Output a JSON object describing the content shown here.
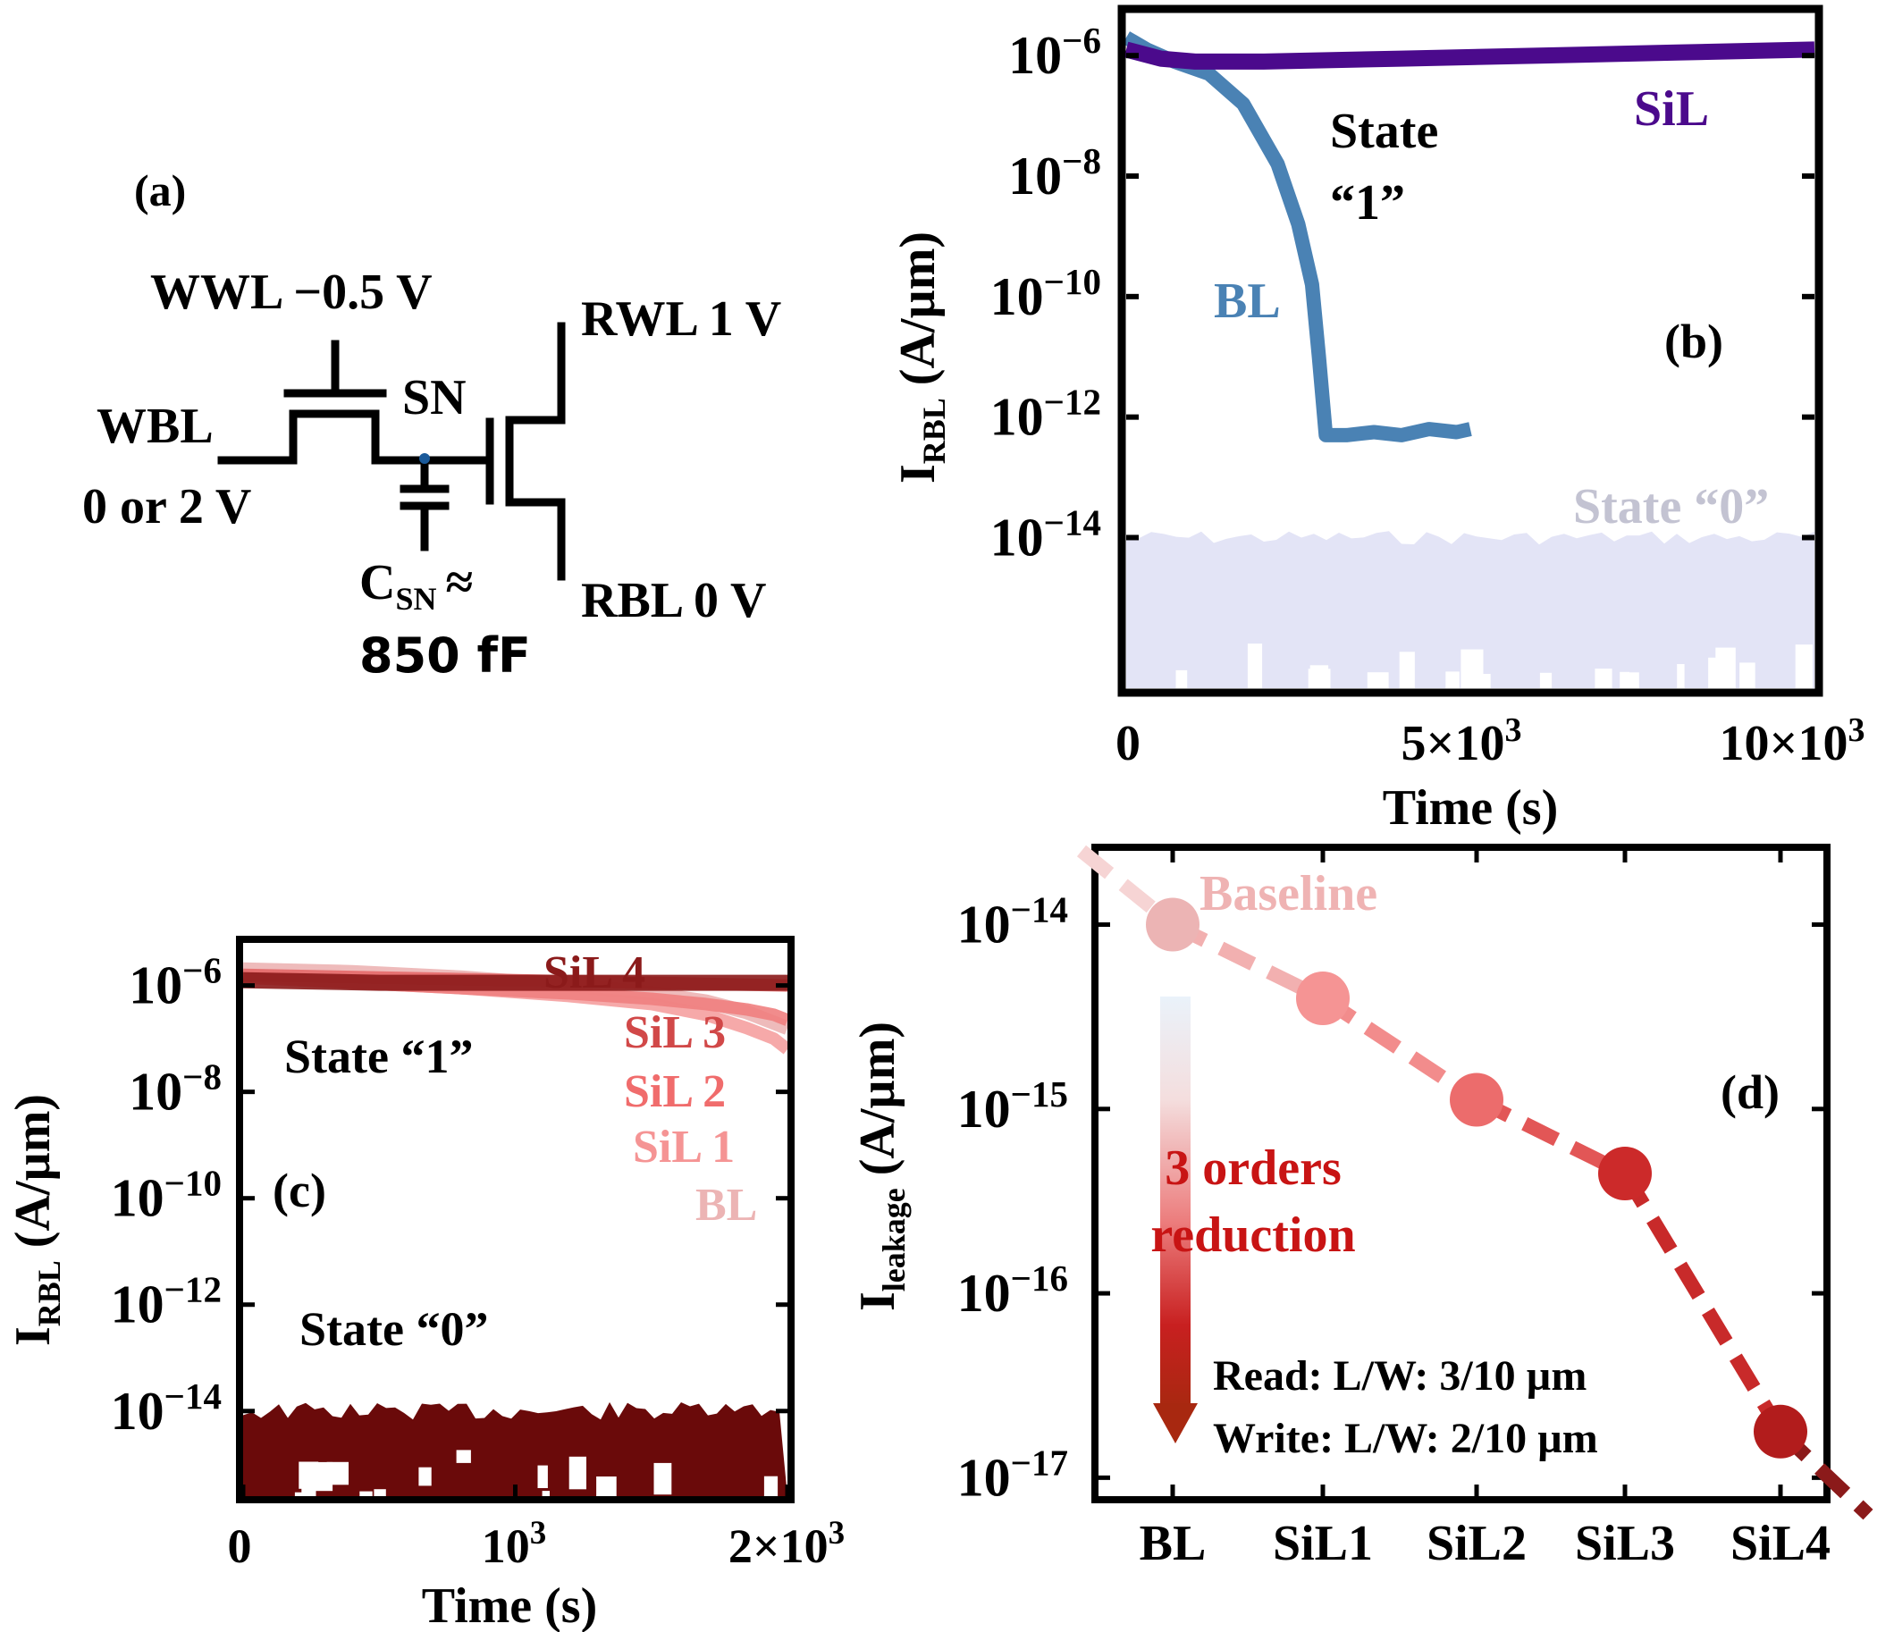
{
  "colors": {
    "black": "#000000",
    "bl_blue": "#4a82b4",
    "sil_purple": "#4b0a8c",
    "state0_lavender": "#e3e4f6",
    "state0_text": "#c3c3d2",
    "dark_red": "#6a0a0a",
    "sil4_red": "#8b1a1a",
    "sil3_red": "#e46a6a",
    "sil2_red": "#f08080",
    "sil1_red": "#f5a0a0",
    "bl_pink": "#ecb4b4",
    "reduction_text": "#c81414",
    "baseline_text": "#efb3b3"
  },
  "panel_a": {
    "label": "(a)",
    "wwl_label": "WWL −0.5 V",
    "wbl_label": "WBL",
    "wbl_value": "0 or 2 V",
    "sn_label": "SN",
    "csn_main": "C",
    "csn_sub": "SN",
    "csn_approx": "≈",
    "csn_value": "850 fF",
    "rwl_label": "RWL 1 V",
    "rbl_label": "RBL  0 V"
  },
  "chart_data": [
    {
      "id": "b",
      "type": "line",
      "panel_label": "(b)",
      "xlabel": "Time (s)",
      "ylabel_main": "I",
      "ylabel_sub": "RBL",
      "ylabel_unit": " (A/µm)",
      "yscale": "log",
      "xlim": [
        0,
        10000
      ],
      "ylim_exp": [
        -16.5,
        -5.3
      ],
      "x_ticks": [
        {
          "value": 0,
          "label": "0"
        },
        {
          "value": 5000,
          "label": "5×10",
          "sup": "3"
        },
        {
          "value": 10000,
          "label": "10×10",
          "sup": "3"
        }
      ],
      "y_ticks": [
        {
          "exp": -6,
          "label": "10",
          "sup": "−6"
        },
        {
          "exp": -8,
          "label": "10",
          "sup": "−8"
        },
        {
          "exp": -10,
          "label": "10",
          "sup": "−10"
        },
        {
          "exp": -12,
          "label": "10",
          "sup": "−12"
        },
        {
          "exp": -14,
          "label": "10",
          "sup": "−14"
        }
      ],
      "series": [
        {
          "name": "SiL",
          "x": [
            0,
            500,
            1000,
            2000,
            4000,
            6000,
            8000,
            10000
          ],
          "log10_y": [
            -5.9,
            -6.05,
            -6.1,
            -6.1,
            -6.05,
            -6.0,
            -5.95,
            -5.9
          ]
        },
        {
          "name": "BL",
          "x": [
            0,
            300,
            700,
            1200,
            1700,
            2200,
            2500,
            2700,
            2800,
            2900,
            3200,
            3600,
            4000,
            4400,
            4800,
            5000
          ],
          "log10_y": [
            -5.7,
            -5.9,
            -6.1,
            -6.3,
            -6.8,
            -7.8,
            -8.8,
            -9.8,
            -11.0,
            -12.3,
            -12.3,
            -12.25,
            -12.3,
            -12.2,
            -12.25,
            -12.2
          ]
        },
        {
          "name": "State “0”",
          "x": [
            0,
            10000
          ],
          "log10_y_band": [
            -16.5,
            -14.0
          ]
        }
      ],
      "annotations": {
        "state1_line1": "State",
        "state1_line2": "“1”",
        "bl": "BL",
        "sil": "SiL",
        "state0": "State “0”"
      }
    },
    {
      "id": "c",
      "type": "line",
      "panel_label": "(c)",
      "xlabel": "Time (s)",
      "ylabel_main": "I",
      "ylabel_sub": "RBL",
      "ylabel_unit": " (A/µm)",
      "yscale": "log",
      "xlim": [
        0,
        2000
      ],
      "ylim_exp": [
        -15.6,
        -5.2
      ],
      "x_ticks": [
        {
          "value": 0,
          "label": "0"
        },
        {
          "value": 1000,
          "label": "10",
          "sup": "3"
        },
        {
          "value": 2000,
          "label": "2×10",
          "sup": "3"
        }
      ],
      "y_ticks": [
        {
          "exp": -6,
          "label": "10",
          "sup": "−6"
        },
        {
          "exp": -8,
          "label": "10",
          "sup": "−8"
        },
        {
          "exp": -10,
          "label": "10",
          "sup": "−10"
        },
        {
          "exp": -12,
          "label": "10",
          "sup": "−12"
        },
        {
          "exp": -14,
          "label": "10",
          "sup": "−14"
        }
      ],
      "series": [
        {
          "name": "BL",
          "x": [
            0,
            400,
            800,
            1200,
            1500,
            1700,
            1850,
            1950,
            2000
          ],
          "log10_y": [
            -5.7,
            -5.75,
            -5.85,
            -6.0,
            -6.15,
            -6.3,
            -6.5,
            -6.7,
            -6.8
          ]
        },
        {
          "name": "SiL 1",
          "x": [
            0,
            400,
            800,
            1200,
            1500,
            1700,
            1850,
            1950,
            2000
          ],
          "log10_y": [
            -5.8,
            -5.95,
            -6.05,
            -6.2,
            -6.35,
            -6.55,
            -6.8,
            -7.0,
            -7.2
          ]
        },
        {
          "name": "SiL 2",
          "x": [
            0,
            400,
            800,
            1200,
            1500,
            1700,
            1850,
            1950,
            2000
          ],
          "log10_y": [
            -5.85,
            -5.95,
            -6.05,
            -6.15,
            -6.25,
            -6.35,
            -6.45,
            -6.55,
            -6.65
          ]
        },
        {
          "name": "SiL 3",
          "x": [
            0,
            500,
            1000,
            1500,
            2000
          ],
          "log10_y": [
            -5.8,
            -5.85,
            -5.9,
            -5.95,
            -6.0
          ]
        },
        {
          "name": "SiL 4",
          "x": [
            0,
            500,
            1000,
            1500,
            2000
          ],
          "log10_y": [
            -5.9,
            -5.95,
            -5.95,
            -5.95,
            -5.95
          ]
        },
        {
          "name": "State “0”",
          "x": [
            0,
            2000
          ],
          "log10_y_band": [
            -15.6,
            -14.0
          ]
        }
      ],
      "annotations": {
        "state1": "State “1”",
        "state0": "State “0”"
      }
    },
    {
      "id": "d",
      "type": "scatter",
      "panel_label": "(d)",
      "ylabel_main": "I",
      "ylabel_sub": "leakage",
      "ylabel_unit": " (A/µm)",
      "yscale": "log",
      "categories": [
        "BL",
        "SiL1",
        "SiL2",
        "SiL3",
        "SiL4"
      ],
      "log10_values": [
        -14.0,
        -14.4,
        -14.95,
        -15.35,
        -16.75
      ],
      "trend_start_log10": -13.6,
      "trend_end_log10": -17.2,
      "ylim_exp": [
        -17.1,
        -13.6
      ],
      "y_ticks": [
        {
          "exp": -14,
          "label": "10",
          "sup": "−14"
        },
        {
          "exp": -15,
          "label": "10",
          "sup": "−15"
        },
        {
          "exp": -16,
          "label": "10",
          "sup": "−16"
        },
        {
          "exp": -17,
          "label": "10",
          "sup": "−17"
        }
      ],
      "point_colors": [
        "#ecb4b4",
        "#f59494",
        "#ec6c6c",
        "#cc2a2a",
        "#b21c1c"
      ],
      "annotations": {
        "baseline": "Baseline",
        "reduction_line1": "3 orders",
        "reduction_line2": "reduction",
        "read": "Read: L/W: 3/10 µm",
        "write": "Write: L/W: 2/10 µm"
      }
    }
  ]
}
